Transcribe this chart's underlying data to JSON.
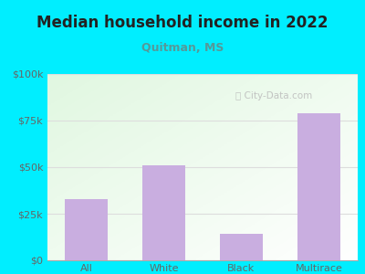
{
  "title": "Median household income in 2022",
  "subtitle": "Quitman, MS",
  "categories": [
    "All",
    "White",
    "Black",
    "Multirace"
  ],
  "values": [
    33000,
    51000,
    14000,
    79000
  ],
  "bar_color": "#c9aee0",
  "background_outer": "#00eeff",
  "title_color": "#222222",
  "subtitle_color": "#559999",
  "tick_label_color": "#666666",
  "ylim": [
    0,
    100000
  ],
  "yticks": [
    0,
    25000,
    50000,
    75000,
    100000
  ],
  "ytick_labels": [
    "$0",
    "$25k",
    "$50k",
    "$75k",
    "$100k"
  ],
  "title_fontsize": 12,
  "subtitle_fontsize": 9,
  "tick_fontsize": 8,
  "watermark_text": "City-Data.com",
  "watermark_color": "#bbbbbb",
  "grid_color": "#dddddd"
}
